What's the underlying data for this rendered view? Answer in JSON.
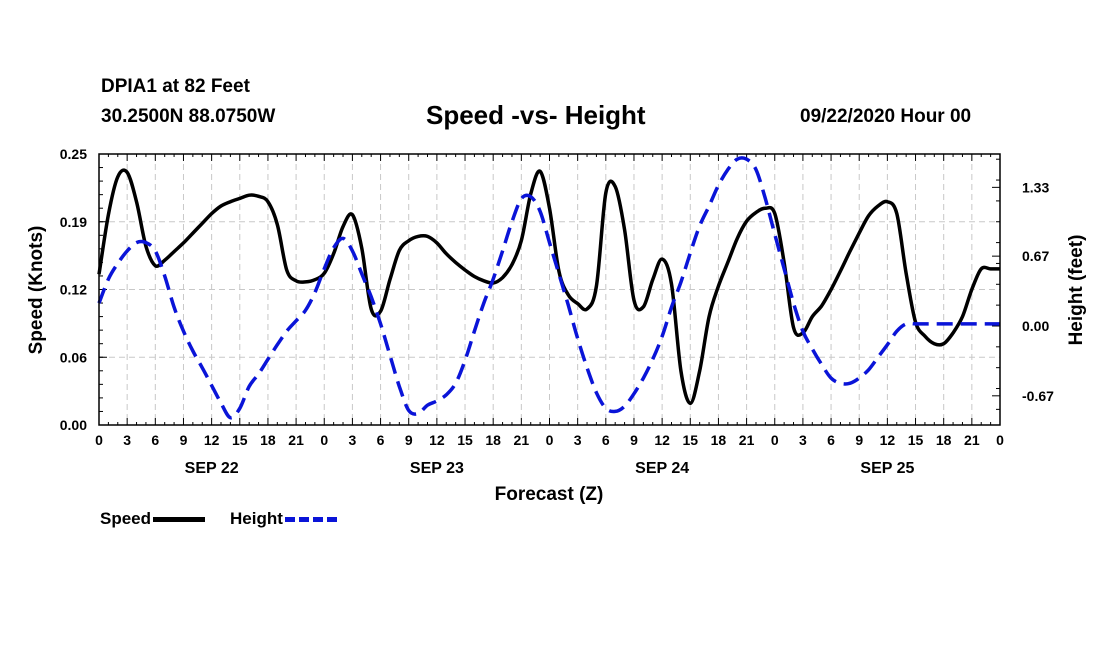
{
  "header": {
    "station": "DPIA1 at 82 Feet",
    "coords": "30.2500N 88.0750W",
    "stamp": "09/22/2020 Hour 00"
  },
  "legend": {
    "speed": "Speed",
    "height": "Height"
  },
  "chart_data": {
    "type": "line",
    "title": "Speed -vs- Height",
    "xlabel": "Forecast (Z)",
    "ylabel": "Speed (Knots)",
    "y2label": "Height (feet)",
    "xlim": [
      0,
      96
    ],
    "ylim": [
      0,
      0.25
    ],
    "y2lim": [
      -0.95,
      1.65
    ],
    "grid": true,
    "legend_position": "bottom-left",
    "x_ticks": [
      0,
      3,
      6,
      9,
      12,
      15,
      18,
      21,
      24,
      27,
      30,
      33,
      36,
      39,
      42,
      45,
      48,
      51,
      54,
      57,
      60,
      63,
      66,
      69,
      72,
      75,
      78,
      81,
      84,
      87,
      90,
      93,
      96
    ],
    "x_tick_labels": [
      "0",
      "3",
      "6",
      "9",
      "12",
      "15",
      "18",
      "21",
      "0",
      "3",
      "6",
      "9",
      "12",
      "15",
      "18",
      "21",
      "0",
      "3",
      "6",
      "9",
      "12",
      "15",
      "18",
      "21",
      "0",
      "3",
      "6",
      "9",
      "12",
      "15",
      "18",
      "21",
      "0"
    ],
    "day_labels": [
      {
        "hour": 12,
        "label": "SEP 22"
      },
      {
        "hour": 36,
        "label": "SEP 23"
      },
      {
        "hour": 60,
        "label": "SEP 24"
      },
      {
        "hour": 84,
        "label": "SEP 25"
      }
    ],
    "y_ticks": [
      0,
      0.0625,
      0.125,
      0.1875,
      0.25
    ],
    "y_tick_labels": [
      "0.00",
      "0.06",
      "0.12",
      "0.19",
      "0.25"
    ],
    "y2_ticks": [
      -0.67,
      0.0,
      0.67,
      1.33
    ],
    "y2_tick_labels": [
      "-0.67",
      "0.00",
      "0.67",
      "1.33"
    ],
    "series": [
      {
        "name": "Speed",
        "axis": "left",
        "color": "#000000",
        "dash": "solid",
        "x": [
          0,
          1,
          2,
          3,
          4,
          5,
          6,
          7,
          8,
          9,
          10,
          11,
          12,
          13,
          14,
          15,
          16,
          17,
          18,
          19,
          20,
          21,
          22,
          23,
          24,
          25,
          26,
          27,
          28,
          29,
          30,
          31,
          32,
          33,
          34,
          35,
          36,
          37,
          38,
          39,
          40,
          41,
          42,
          43,
          44,
          45,
          46,
          47,
          48,
          49,
          50,
          51,
          52,
          53,
          54,
          55,
          56,
          57,
          58,
          59,
          60,
          61,
          62,
          63,
          64,
          65,
          66,
          67,
          68,
          69,
          70,
          71,
          72,
          73,
          74,
          75,
          76,
          77,
          78,
          79,
          80,
          81,
          82,
          83,
          84,
          85,
          86,
          87,
          88,
          89,
          90,
          91,
          92,
          93,
          94,
          95,
          96
        ],
        "values": [
          0.139,
          0.194,
          0.229,
          0.233,
          0.206,
          0.165,
          0.147,
          0.152,
          0.16,
          0.168,
          0.177,
          0.186,
          0.195,
          0.202,
          0.206,
          0.209,
          0.212,
          0.211,
          0.206,
          0.185,
          0.143,
          0.133,
          0.132,
          0.134,
          0.14,
          0.158,
          0.183,
          0.194,
          0.163,
          0.107,
          0.105,
          0.134,
          0.161,
          0.17,
          0.174,
          0.174,
          0.168,
          0.158,
          0.15,
          0.143,
          0.137,
          0.133,
          0.131,
          0.136,
          0.148,
          0.17,
          0.213,
          0.234,
          0.2,
          0.142,
          0.12,
          0.112,
          0.107,
          0.128,
          0.214,
          0.22,
          0.18,
          0.115,
          0.109,
          0.134,
          0.153,
          0.13,
          0.05,
          0.02,
          0.05,
          0.1,
          0.128,
          0.15,
          0.172,
          0.188,
          0.196,
          0.2,
          0.195,
          0.15,
          0.09,
          0.085,
          0.1,
          0.11,
          0.125,
          0.142,
          0.16,
          0.177,
          0.193,
          0.202,
          0.206,
          0.195,
          0.14,
          0.095,
          0.082,
          0.075,
          0.075,
          0.085,
          0.1,
          0.125,
          0.144,
          0.144,
          0.144
        ]
      },
      {
        "name": "Height",
        "axis": "right",
        "color": "#0a14d8",
        "dash": "dashed",
        "x": [
          0,
          1,
          2,
          3,
          4,
          5,
          6,
          7,
          8,
          9,
          10,
          11,
          12,
          13,
          14,
          15,
          16,
          17,
          18,
          19,
          20,
          21,
          22,
          23,
          24,
          25,
          26,
          27,
          28,
          29,
          30,
          31,
          32,
          33,
          34,
          35,
          36,
          37,
          38,
          39,
          40,
          41,
          42,
          43,
          44,
          45,
          46,
          47,
          48,
          49,
          50,
          51,
          52,
          53,
          54,
          55,
          56,
          57,
          58,
          59,
          60,
          61,
          62,
          63,
          64,
          65,
          66,
          67,
          68,
          69,
          70,
          71,
          72,
          73,
          74,
          75,
          76,
          77,
          78,
          79,
          80,
          81,
          82,
          83,
          84,
          85,
          86,
          87,
          88,
          89,
          90,
          91,
          92,
          93,
          94,
          95,
          96
        ],
        "values": [
          0.22,
          0.45,
          0.6,
          0.72,
          0.8,
          0.8,
          0.72,
          0.48,
          0.18,
          -0.05,
          -0.24,
          -0.4,
          -0.57,
          -0.74,
          -0.88,
          -0.79,
          -0.58,
          -0.46,
          -0.32,
          -0.18,
          -0.05,
          0.05,
          0.15,
          0.32,
          0.55,
          0.75,
          0.84,
          0.72,
          0.5,
          0.28,
          0.02,
          -0.28,
          -0.58,
          -0.81,
          -0.84,
          -0.76,
          -0.72,
          -0.66,
          -0.55,
          -0.33,
          -0.05,
          0.22,
          0.45,
          0.72,
          1.0,
          1.22,
          1.24,
          1.1,
          0.8,
          0.5,
          0.2,
          -0.12,
          -0.4,
          -0.64,
          -0.79,
          -0.82,
          -0.77,
          -0.65,
          -0.5,
          -0.32,
          -0.1,
          0.18,
          0.42,
          0.7,
          0.96,
          1.15,
          1.35,
          1.5,
          1.6,
          1.6,
          1.5,
          1.22,
          0.88,
          0.55,
          0.22,
          -0.05,
          -0.22,
          -0.37,
          -0.5,
          -0.55,
          -0.55,
          -0.5,
          -0.42,
          -0.3,
          -0.18,
          -0.05,
          0.02,
          0.02,
          0.02,
          0.02,
          0.02,
          0.02,
          0.02,
          0.02,
          0.02,
          0.02,
          0.02
        ]
      }
    ]
  }
}
